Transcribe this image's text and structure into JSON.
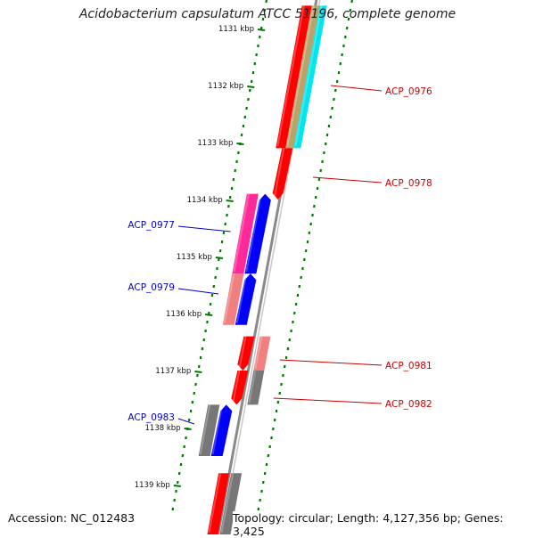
{
  "title": "Acidobacterium capsulatum ATCC 51196, complete genome",
  "accession": "Accession: NC_012483",
  "summary": "Topology: circular; Length: 4,127,356 bp; Genes: 3,425",
  "ticks": [
    "1131 kbp",
    "1132 kbp",
    "1133 kbp",
    "1134 kbp",
    "1135 kbp",
    "1136 kbp",
    "1137 kbp",
    "1138 kbp",
    "1139 kbp"
  ],
  "genes": [
    {
      "id": "g1",
      "strand": "forward",
      "color": "#ff0000",
      "start_kbp": 1130.6,
      "end_kbp": 1133.1,
      "label": ""
    },
    {
      "id": "g2",
      "strand": "forward",
      "color": "#b8a46a",
      "start_kbp": 1130.6,
      "end_kbp": 1133.1,
      "label": "ACP_0976"
    },
    {
      "id": "g3",
      "strand": "forward",
      "color": "#00e5ee",
      "start_kbp": 1130.6,
      "end_kbp": 1133.1,
      "label": ""
    },
    {
      "id": "g4",
      "strand": "forward",
      "color": "#ff0000",
      "start_kbp": 1133.1,
      "end_kbp": 1134.0,
      "label": "ACP_0978"
    },
    {
      "id": "g5",
      "strand": "reverse",
      "color": "#ff2a9a",
      "start_kbp": 1133.9,
      "end_kbp": 1135.3,
      "label": "ACP_0977"
    },
    {
      "id": "g6",
      "strand": "reverse",
      "color": "#0000ff",
      "start_kbp": 1133.9,
      "end_kbp": 1135.3,
      "label": ""
    },
    {
      "id": "g7",
      "strand": "reverse",
      "color": "#f08080",
      "start_kbp": 1135.3,
      "end_kbp": 1136.2,
      "label": "ACP_0979"
    },
    {
      "id": "g8",
      "strand": "reverse",
      "color": "#0000ff",
      "start_kbp": 1135.3,
      "end_kbp": 1136.2,
      "label": ""
    },
    {
      "id": "g9",
      "strand": "forward",
      "color": "#ff0000",
      "start_kbp": 1136.4,
      "end_kbp": 1137.0,
      "label": "ACP_0981"
    },
    {
      "id": "g10",
      "strand": "forward",
      "color": "#f08080",
      "start_kbp": 1136.4,
      "end_kbp": 1137.0,
      "label": ""
    },
    {
      "id": "g11",
      "strand": "forward",
      "color": "#ff0000",
      "start_kbp": 1137.0,
      "end_kbp": 1137.6,
      "label": ""
    },
    {
      "id": "g12",
      "strand": "forward",
      "color": "#777777",
      "start_kbp": 1137.0,
      "end_kbp": 1137.6,
      "label": "ACP_0982"
    },
    {
      "id": "g13",
      "strand": "reverse",
      "color": "#777777",
      "start_kbp": 1137.6,
      "end_kbp": 1138.5,
      "label": "ACP_0983"
    },
    {
      "id": "g14",
      "strand": "reverse",
      "color": "#0000ff",
      "start_kbp": 1137.6,
      "end_kbp": 1138.5,
      "label": ""
    },
    {
      "id": "g15",
      "strand": "forward",
      "color": "#ff0000",
      "start_kbp": 1138.8,
      "end_kbp": 1140.0,
      "label": ""
    },
    {
      "id": "g16",
      "strand": "forward",
      "color": "#777777",
      "start_kbp": 1138.8,
      "end_kbp": 1140.0,
      "label": ""
    }
  ],
  "colors": {
    "forward_label": "#cc0000",
    "reverse_label": "#0000cc",
    "tick": "#007700",
    "axis": "#888888"
  }
}
